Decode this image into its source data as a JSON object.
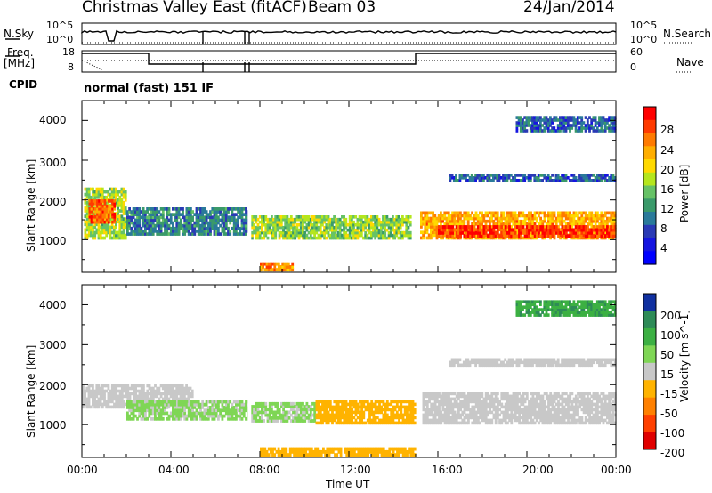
{
  "header": {
    "title": "Christmas Valley East (fitACF)",
    "beam": "Beam 03",
    "date": "24/Jan/2014"
  },
  "params": {
    "nsky_label": "N.Sky",
    "nsearch_label": "N.Search",
    "freq_label": "Freq.",
    "freq_unit": "[MHz]",
    "nave_label": "Nave",
    "cpid_label": "CPID",
    "cpid_text": "normal (fast) 151 IF",
    "nsky_ticks": [
      "10^5",
      "10^0"
    ],
    "nsearch_ticks": [
      "10^5",
      "10^0"
    ],
    "freq_ticks": [
      "18",
      "8"
    ],
    "nave_ticks": [
      "60",
      "0"
    ]
  },
  "legends": {
    "power_label": "Power [dB]",
    "power_ticks": [
      "28",
      "24",
      "20",
      "16",
      "12",
      "8",
      "4"
    ],
    "power_colors": [
      "#ff0000",
      "#ff3a00",
      "#ff7a00",
      "#ffae00",
      "#ffd900",
      "#b5e61d",
      "#66c266",
      "#3a9a6a",
      "#2a7a9a",
      "#2a3ab5",
      "#1515e0",
      "#0000ff"
    ],
    "velocity_label": "Velocity [m s^-1]",
    "velocity_ticks": [
      "200",
      "100",
      "50",
      "15",
      "-15",
      "-50",
      "-100",
      "-200"
    ],
    "velocity_colors": [
      "#1030a0",
      "#2e8b57",
      "#3cb043",
      "#7fd655",
      "#c8c8c8",
      "#ffb300",
      "#ff8000",
      "#ff4000",
      "#e00000"
    ]
  },
  "axes": {
    "y_label": "Slant Range [km]",
    "y_ticks": [
      "4000",
      "3000",
      "2000",
      "1000"
    ],
    "x_label": "Time UT",
    "x_ticks": [
      "00:00",
      "04:00",
      "08:00",
      "12:00",
      "16:00",
      "20:00",
      "00:00"
    ]
  },
  "chart_data": [
    {
      "type": "heatmap",
      "title": "Power [dB]",
      "xlabel": "Time UT",
      "ylabel": "Slant Range [km]",
      "xlim": [
        0,
        24
      ],
      "ylim": [
        180,
        4500
      ],
      "clim": [
        0,
        30
      ],
      "bands": [
        {
          "t0": 0.1,
          "t1": 2.0,
          "r0": 1000,
          "r1": 2300,
          "level": 16
        },
        {
          "t0": 0.3,
          "t1": 1.5,
          "r0": 1400,
          "r1": 2000,
          "level": 26
        },
        {
          "t0": 2.0,
          "t1": 7.5,
          "r0": 1100,
          "r1": 1800,
          "level": 9
        },
        {
          "t0": 7.6,
          "t1": 14.8,
          "r0": 1000,
          "r1": 1600,
          "level": 15
        },
        {
          "t0": 8.0,
          "t1": 9.5,
          "r0": 200,
          "r1": 420,
          "level": 24
        },
        {
          "t0": 15.2,
          "t1": 24.0,
          "r0": 1000,
          "r1": 1700,
          "level": 22
        },
        {
          "t0": 16.0,
          "t1": 24.0,
          "r0": 1050,
          "r1": 1350,
          "level": 28
        },
        {
          "t0": 16.5,
          "t1": 24.0,
          "r0": 2450,
          "r1": 2650,
          "level": 7
        },
        {
          "t0": 19.5,
          "t1": 24.0,
          "r0": 3700,
          "r1": 4100,
          "level": 7
        }
      ]
    },
    {
      "type": "heatmap",
      "title": "Velocity [m s^-1]",
      "xlabel": "Time UT",
      "ylabel": "Slant Range [km]",
      "xlim": [
        0,
        24
      ],
      "ylim": [
        180,
        4500
      ],
      "clim": [
        -250,
        250
      ],
      "bands": [
        {
          "t0": 0.0,
          "t1": 5.0,
          "r0": 1400,
          "r1": 2000,
          "level": 0
        },
        {
          "t0": 2.0,
          "t1": 7.5,
          "r0": 1100,
          "r1": 1600,
          "level": 40
        },
        {
          "t0": 7.6,
          "t1": 10.5,
          "r0": 1050,
          "r1": 1550,
          "level": 40
        },
        {
          "t0": 10.5,
          "t1": 15.0,
          "r0": 1000,
          "r1": 1600,
          "level": -60
        },
        {
          "t0": 8.0,
          "t1": 15.0,
          "r0": 200,
          "r1": 420,
          "level": -60
        },
        {
          "t0": 15.3,
          "t1": 24.0,
          "r0": 1000,
          "r1": 1800,
          "level": 0
        },
        {
          "t0": 16.5,
          "t1": 24.0,
          "r0": 2450,
          "r1": 2650,
          "level": 0
        },
        {
          "t0": 19.5,
          "t1": 24.0,
          "r0": 3700,
          "r1": 4100,
          "level": 150
        }
      ]
    }
  ]
}
